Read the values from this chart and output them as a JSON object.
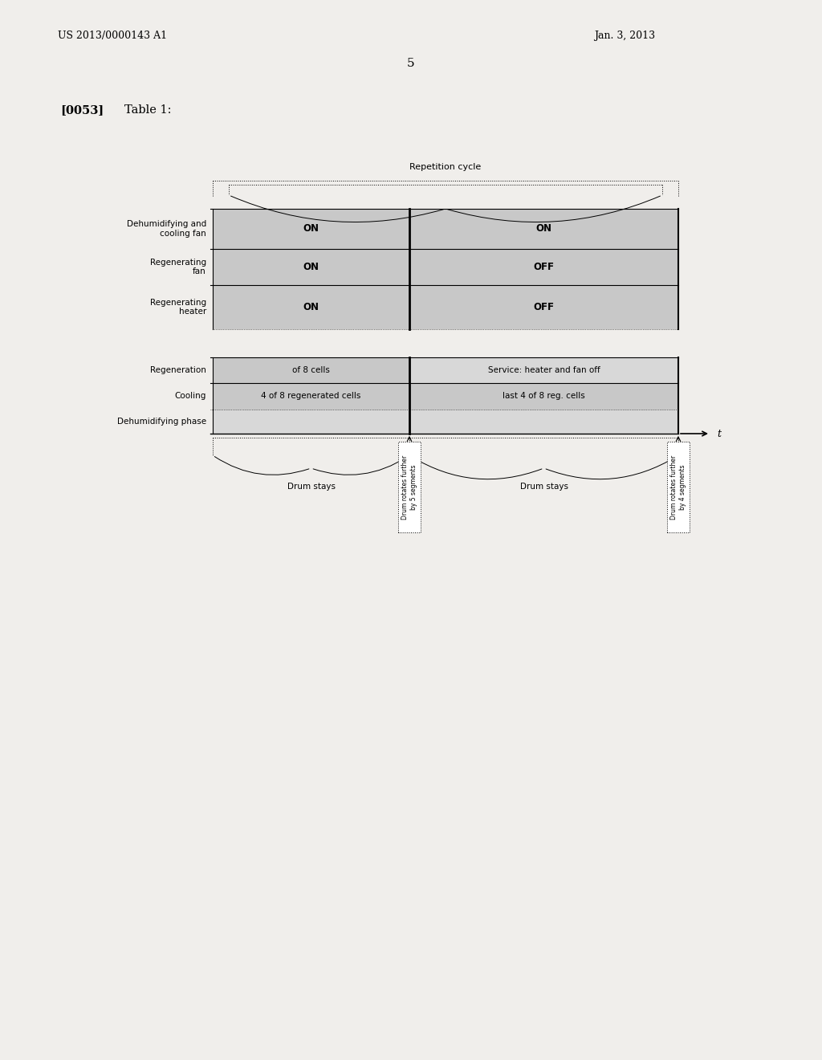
{
  "bg_color": "#f0eeeb",
  "page_number": "5",
  "header_left": "US 2013/0000143 A1",
  "header_right": "Jan. 3, 2013",
  "section_label": "[0053]",
  "section_title": "Table 1:",
  "repetition_cycle_label": "Repetition cycle",
  "row_labels_top": [
    "Dehumidifying and\ncooling fan",
    "Regenerating\nfan",
    "Regenerating\nheater"
  ],
  "row_labels_bot": [
    "Regeneration",
    "Cooling",
    "Dehumidifying phase"
  ],
  "col1_top": [
    "ON",
    "ON",
    "ON"
  ],
  "col2_top": [
    "ON",
    "OFF",
    "OFF"
  ],
  "col1_bot": [
    "of 8 cells",
    "4 of 8 regenerated cells",
    ""
  ],
  "col2_bot": [
    "Service: heater and fan off",
    "last 4 of 8 reg. cells",
    ""
  ],
  "drum_label_left": "Drum stays",
  "drum_label_right": "Drum stays",
  "rotate_label1": "Drum rotates further\nby 5 segments",
  "rotate_label2": "Drum rotates further\nby 4 segments",
  "t_label": "t",
  "fill_color": "#c8c8c8",
  "fill_color2": "#d8d8d8"
}
